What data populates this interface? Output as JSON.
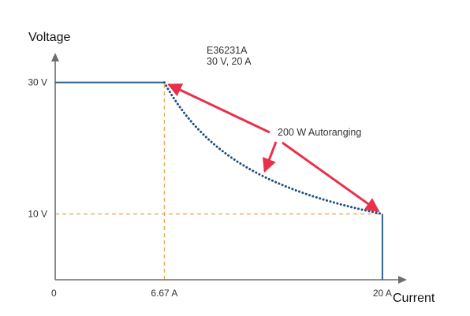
{
  "chart_data": {
    "type": "line",
    "xlabel": "Current",
    "ylabel": "Voltage",
    "xlim": [
      0,
      21.5
    ],
    "ylim": [
      0,
      34.5
    ],
    "model": {
      "line1": "E36231A",
      "line2": "30 V, 20 A"
    },
    "x_ticks": [
      {
        "value": 0,
        "label": "0"
      },
      {
        "value": 6.67,
        "label": "6.67 A"
      },
      {
        "value": 20,
        "label": "20 A"
      }
    ],
    "y_ticks": [
      {
        "value": 30,
        "label": "30 V"
      },
      {
        "value": 10,
        "label": "10 V"
      }
    ],
    "series": [
      {
        "style": "solid",
        "color": "#2f5f8f",
        "points": [
          [
            0,
            30
          ],
          [
            6.67,
            30
          ]
        ]
      },
      {
        "style": "dotted",
        "color": "#1f4f7f",
        "curve": "constant_power",
        "power_w": 200,
        "x_range": [
          6.67,
          20
        ]
      },
      {
        "style": "solid",
        "color": "#2f5f8f",
        "points": [
          [
            20,
            10
          ],
          [
            20,
            0
          ]
        ]
      }
    ],
    "reference_lines": [
      {
        "orientation": "vertical",
        "x": 6.67,
        "y_range": [
          0,
          30
        ],
        "color": "#f0a040",
        "style": "dashed"
      },
      {
        "orientation": "horizontal",
        "y": 10,
        "x_range": [
          0,
          20
        ],
        "color": "#f0a040",
        "style": "dashed"
      }
    ],
    "annotation": {
      "text": "200 W Autoranging",
      "color": "#e8304a",
      "arrow_targets": [
        [
          6.67,
          30
        ],
        [
          12.7,
          15.8
        ],
        [
          20,
          10
        ]
      ]
    }
  }
}
